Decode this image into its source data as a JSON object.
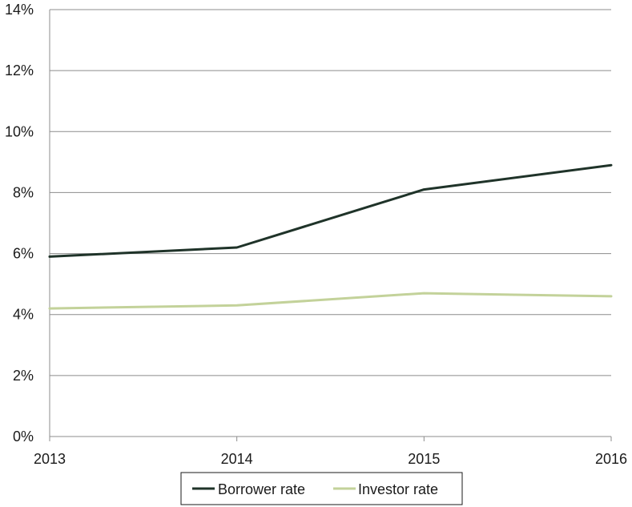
{
  "chart_data": {
    "type": "line",
    "title": "",
    "xlabel": "",
    "ylabel": "",
    "categories": [
      "2013",
      "2014",
      "2015",
      "2016"
    ],
    "series": [
      {
        "name": "Borrower rate",
        "color": "#1f3329",
        "values": [
          5.9,
          6.2,
          8.1,
          8.9
        ]
      },
      {
        "name": "Investor rate",
        "color": "#c3d29a",
        "values": [
          4.2,
          4.3,
          4.7,
          4.6
        ]
      }
    ],
    "ylim": [
      0,
      14
    ],
    "yticks": [
      "0%",
      "2%",
      "4%",
      "6%",
      "8%",
      "10%",
      "12%",
      "14%"
    ],
    "grid": true,
    "legend": "bottom-center"
  }
}
